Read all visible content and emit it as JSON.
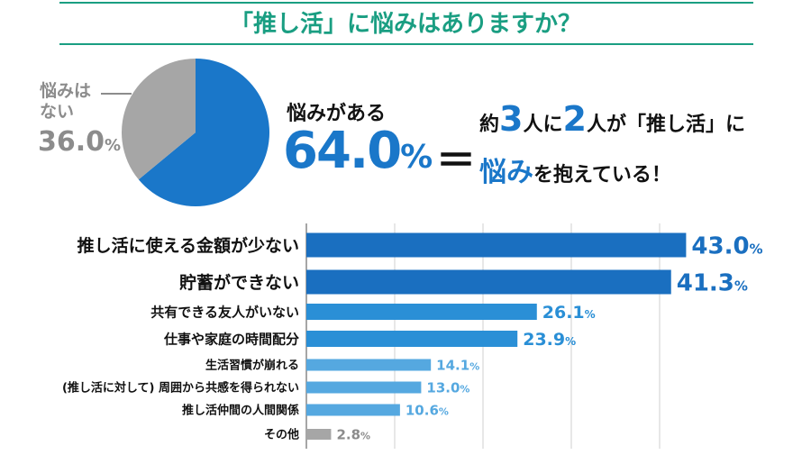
{
  "header": {
    "title": "「推し活」に悩みはありますか？"
  },
  "pie": {
    "yes_label": "悩みがある",
    "yes_value": "64.0",
    "no_label_line1": "悩みは",
    "no_label_line2": "ない",
    "no_value": "36.0",
    "pct_sign": "%",
    "colors": {
      "yes": "#1a77c9",
      "no": "#a6a6a6"
    }
  },
  "summary": {
    "equals": "＝",
    "line1_a": "約",
    "line1_b": "3",
    "line1_c": "人に",
    "line1_d": "2",
    "line1_e": "人が「推し活」に",
    "line2_a": "悩み",
    "line2_b": "を抱えている！"
  },
  "chart_data": [
    {
      "type": "pie",
      "labels": [
        "悩みがある",
        "悩みはない"
      ],
      "values": [
        64.0,
        36.0
      ],
      "unit": "%"
    },
    {
      "type": "bar",
      "orientation": "horizontal",
      "categories": [
        "推し活に使える金額が少ない",
        "貯蓄ができない",
        "共有できる友人がいない",
        "仕事や家庭の時間配分",
        "生活習慣が崩れる",
        "(推し活に対して) 周囲から共感を得られない",
        "推し活仲間の人間関係",
        "その他"
      ],
      "values": [
        43.0,
        41.3,
        26.1,
        23.9,
        14.1,
        13.0,
        10.6,
        2.8
      ],
      "value_labels": [
        "43.0",
        "41.3",
        "26.1",
        "23.9",
        "14.1",
        "13.0",
        "10.6",
        "2.8"
      ],
      "unit": "%",
      "xlim": [
        0,
        45
      ],
      "grid": true,
      "colors": [
        "#1a6fc0",
        "#1a6fc0",
        "#2a8fd6",
        "#2a8fd6",
        "#55a8e0",
        "#55a8e0",
        "#55a8e0",
        "#a6a6a6"
      ]
    }
  ]
}
